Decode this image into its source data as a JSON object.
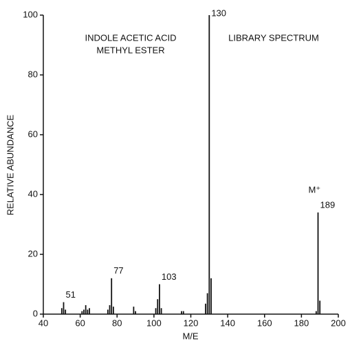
{
  "chart_data": {
    "type": "stick",
    "title_lines": [
      "INDOLE ACETIC ACID",
      "METHYL ESTER"
    ],
    "subtitle": "LIBRARY SPECTRUM",
    "x_label": "M/E",
    "y_label": "RELATIVE ABUNDANCE",
    "x": [
      50,
      51,
      52,
      61,
      62,
      63,
      64,
      65,
      75,
      76,
      77,
      78,
      89,
      90,
      101,
      102,
      103,
      104,
      115,
      116,
      128,
      129,
      130,
      131,
      188,
      189,
      190
    ],
    "values": [
      2,
      4,
      1.5,
      1,
      1.5,
      3,
      1.5,
      2,
      1.5,
      3,
      12,
      2.5,
      2.5,
      1,
      2,
      5,
      10,
      2,
      1,
      1,
      3.5,
      7,
      100,
      12,
      1,
      34,
      4.5
    ],
    "color": "#111111",
    "xlim": [
      40,
      200
    ],
    "xticks": [
      40,
      60,
      80,
      100,
      120,
      140,
      160,
      180,
      200
    ],
    "ylim": [
      0,
      100
    ],
    "yticks": [
      0,
      20,
      40,
      60,
      80,
      100
    ],
    "annotations": [
      {
        "text": "51",
        "x": 51
      },
      {
        "text": "77",
        "x": 77
      },
      {
        "text": "103",
        "x": 103
      },
      {
        "text": "130",
        "x": 130
      },
      {
        "text": "189",
        "x": 189
      },
      {
        "text": "M⁺",
        "x": 189
      }
    ]
  }
}
